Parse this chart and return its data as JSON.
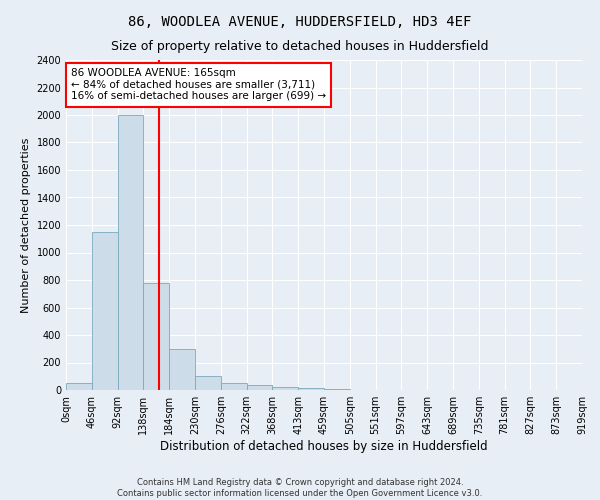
{
  "title": "86, WOODLEA AVENUE, HUDDERSFIELD, HD3 4EF",
  "subtitle": "Size of property relative to detached houses in Huddersfield",
  "xlabel": "Distribution of detached houses by size in Huddersfield",
  "ylabel": "Number of detached properties",
  "footnote1": "Contains HM Land Registry data © Crown copyright and database right 2024.",
  "footnote2": "Contains public sector information licensed under the Open Government Licence v3.0.",
  "bin_labels": [
    "0sqm",
    "46sqm",
    "92sqm",
    "138sqm",
    "184sqm",
    "230sqm",
    "276sqm",
    "322sqm",
    "368sqm",
    "413sqm",
    "459sqm",
    "505sqm",
    "551sqm",
    "597sqm",
    "643sqm",
    "689sqm",
    "735sqm",
    "781sqm",
    "827sqm",
    "873sqm",
    "919sqm"
  ],
  "bar_values": [
    50,
    1150,
    2000,
    780,
    295,
    100,
    50,
    40,
    25,
    18,
    10,
    0,
    0,
    0,
    0,
    0,
    0,
    0,
    0,
    0
  ],
  "bar_color": "#ccdce8",
  "bar_edge_color": "#7aaabe",
  "annotation_text": "86 WOODLEA AVENUE: 165sqm\n← 84% of detached houses are smaller (3,711)\n16% of semi-detached houses are larger (699) →",
  "annotation_box_color": "white",
  "annotation_box_edgecolor": "red",
  "ylim": [
    0,
    2400
  ],
  "yticks": [
    0,
    200,
    400,
    600,
    800,
    1000,
    1200,
    1400,
    1600,
    1800,
    2000,
    2200,
    2400
  ],
  "background_color": "#e8eef5",
  "plot_bg_color": "#e8eef5",
  "grid_color": "white",
  "title_fontsize": 10,
  "subtitle_fontsize": 9,
  "xlabel_fontsize": 8.5,
  "ylabel_fontsize": 8,
  "tick_fontsize": 7,
  "annotation_fontsize": 7.5,
  "footnote_fontsize": 6
}
